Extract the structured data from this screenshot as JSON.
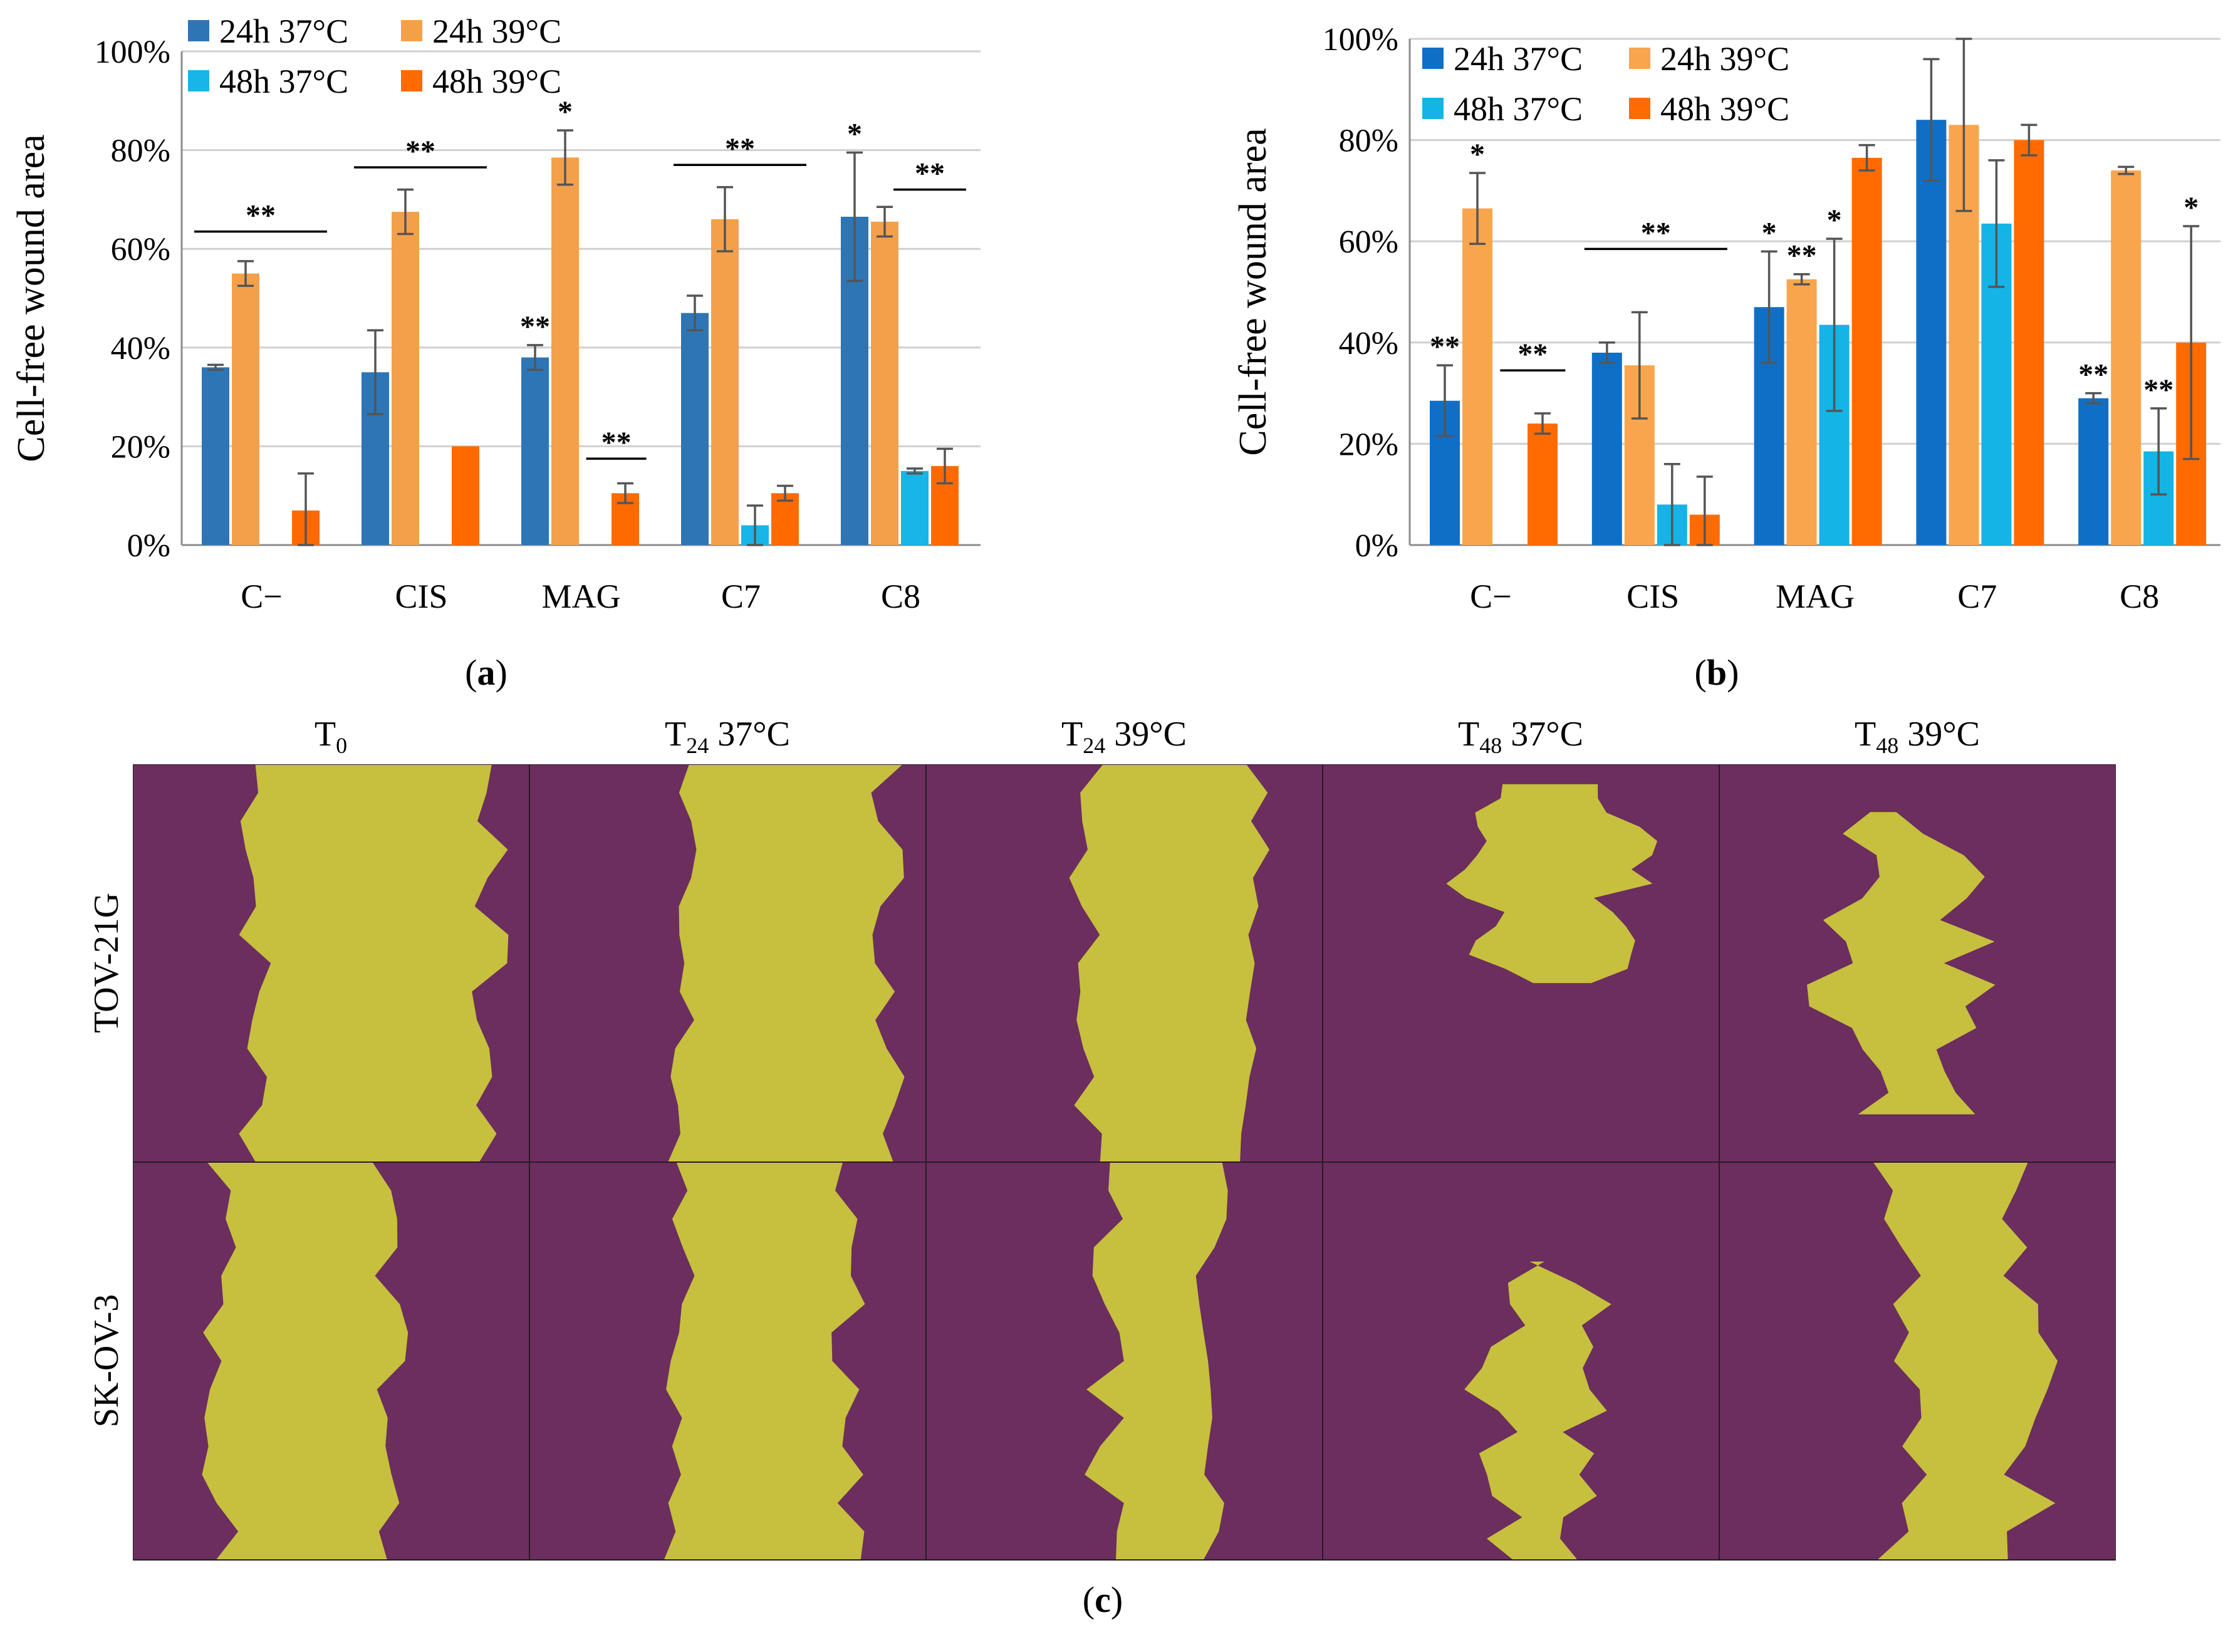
{
  "chart_data": [
    {
      "type": "bar",
      "panel": "a",
      "ylabel": "Cell-free wound area",
      "ylim": [
        0,
        100
      ],
      "yticks": [
        "0%",
        "20%",
        "40%",
        "60%",
        "80%",
        "100%"
      ],
      "categories": [
        "C−",
        "CIS",
        "MAG",
        "C7",
        "C8"
      ],
      "series": [
        {
          "name": "24h 37°C",
          "color": "#2E75B6",
          "values": [
            36,
            35,
            38,
            47,
            66.5
          ],
          "errors": [
            0.5,
            8.5,
            2.5,
            3.5,
            13
          ]
        },
        {
          "name": "24h 39°C",
          "color": "#F4A04B",
          "values": [
            55,
            67.5,
            78.5,
            66,
            65.5
          ],
          "errors": [
            2.5,
            4.5,
            5.5,
            6.5,
            3
          ]
        },
        {
          "name": "48h 37°C",
          "color": "#17B5E8",
          "values": [
            null,
            null,
            null,
            4,
            15
          ],
          "errors": [
            0,
            0,
            0,
            4,
            0.5
          ]
        },
        {
          "name": "48h 39°C",
          "color": "#FF6A00",
          "values": [
            7,
            20,
            10.5,
            10.5,
            16
          ],
          "errors": [
            7.5,
            0,
            2,
            1.5,
            3.5
          ]
        }
      ],
      "annotations": {
        "single_bar": [
          {
            "cat": 2,
            "series": 0,
            "text": "**"
          },
          {
            "cat": 2,
            "series": 1,
            "text": "*"
          },
          {
            "cat": 4,
            "series": 0,
            "text": "*"
          }
        ],
        "brackets": [
          {
            "cat": 0,
            "from": 0,
            "to": 3,
            "y": 63.5,
            "text": "**"
          },
          {
            "cat": 1,
            "from": 0,
            "to": 3,
            "y": 76.5,
            "text": "**"
          },
          {
            "cat": 2,
            "from": 3,
            "to": 3,
            "y": 17.5,
            "text": "**",
            "wide": true
          },
          {
            "cat": 3,
            "from": 0,
            "to": 3,
            "y": 77,
            "text": "**"
          },
          {
            "cat": 4,
            "from": 2,
            "to": 3,
            "y": 72,
            "text": "**"
          }
        ]
      },
      "legend": "top-left"
    },
    {
      "type": "bar",
      "panel": "b",
      "ylabel": "Cell-free wound area",
      "ylim": [
        0,
        100
      ],
      "yticks": [
        "0%",
        "20%",
        "40%",
        "60%",
        "80%",
        "100%"
      ],
      "categories": [
        "C−",
        "CIS",
        "MAG",
        "C7",
        "C8"
      ],
      "series": [
        {
          "name": "24h 37°C",
          "color": "#0F6FC6",
          "values": [
            28.5,
            38,
            47,
            84,
            29
          ],
          "errors": [
            7,
            2,
            11,
            12,
            1
          ]
        },
        {
          "name": "24h 39°C",
          "color": "#F9A54D",
          "values": [
            66.5,
            35.5,
            52.5,
            83,
            74
          ],
          "errors": [
            7,
            10.5,
            1,
            17,
            0.7
          ]
        },
        {
          "name": "48h 37°C",
          "color": "#14B4E6",
          "values": [
            null,
            8,
            43.5,
            63.5,
            18.5
          ],
          "errors": [
            0,
            8,
            17,
            12.5,
            8.5
          ]
        },
        {
          "name": "48h 39°C",
          "color": "#FF6B00",
          "values": [
            24,
            6,
            76.5,
            80,
            40
          ],
          "errors": [
            2,
            7.5,
            2.5,
            3,
            23
          ]
        }
      ],
      "annotations": {
        "single_bar": [
          {
            "cat": 0,
            "series": 0,
            "text": "**"
          },
          {
            "cat": 0,
            "series": 1,
            "text": "*"
          },
          {
            "cat": 2,
            "series": 0,
            "text": "*"
          },
          {
            "cat": 2,
            "series": 1,
            "text": "**"
          },
          {
            "cat": 2,
            "series": 2,
            "text": "*"
          },
          {
            "cat": 4,
            "series": 0,
            "text": "**"
          },
          {
            "cat": 4,
            "series": 2,
            "text": "**"
          },
          {
            "cat": 4,
            "series": 3,
            "text": "*"
          }
        ],
        "brackets": [
          {
            "cat": 0,
            "from": 3,
            "to": 3,
            "y": 34.5,
            "text": "**",
            "wide": true
          },
          {
            "cat": 1,
            "from": 0,
            "to": 3,
            "y": 58.5,
            "text": "**"
          }
        ]
      },
      "legend": "top-left"
    }
  ],
  "panel_labels": {
    "a": "a",
    "b": "b",
    "c": "c"
  },
  "micrographs": {
    "columns": [
      {
        "main": "T",
        "sub": "0",
        "rest": ""
      },
      {
        "main": "T",
        "sub": "24",
        "rest": " 37°C"
      },
      {
        "main": "T",
        "sub": "24",
        "rest": " 39°C"
      },
      {
        "main": "T",
        "sub": "48",
        "rest": " 37°C"
      },
      {
        "main": "T",
        "sub": "48",
        "rest": " 39°C"
      }
    ],
    "rows": [
      "TOV-21G",
      "SK-OV-3"
    ],
    "cell_color": "#6B2E5E",
    "wound_color": "#C7BF3E"
  }
}
